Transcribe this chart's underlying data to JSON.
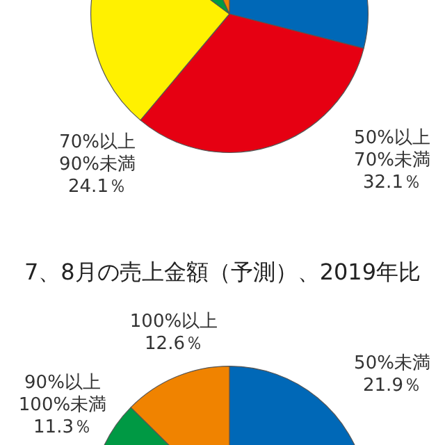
{
  "chart_data": [
    {
      "type": "pie",
      "categories": [
        null,
        "50%以上\n70%未満",
        "70%以上\n90%未満",
        null,
        null
      ],
      "values": [
        29,
        32.1,
        24.1,
        8,
        6.8
      ],
      "value_labels": [
        null,
        "32.1％",
        "24.1％",
        null,
        null
      ],
      "colors": [
        "#0068b7",
        "#e60012",
        "#fff100",
        "#009944",
        "#f08300"
      ],
      "legend": false
    },
    {
      "type": "pie",
      "title": "7、8月の売上金額（予測）、2019年比",
      "categories": [
        "50%未満",
        null,
        null,
        "90%以上\n100%未満",
        "100%以上"
      ],
      "values": [
        21.9,
        null,
        null,
        11.3,
        12.6
      ],
      "value_labels": [
        "21.9％",
        null,
        null,
        "11.3％",
        "12.6％"
      ],
      "colors": [
        "#0068b7",
        null,
        null,
        "#009944",
        "#f08300"
      ],
      "legend": false
    }
  ]
}
